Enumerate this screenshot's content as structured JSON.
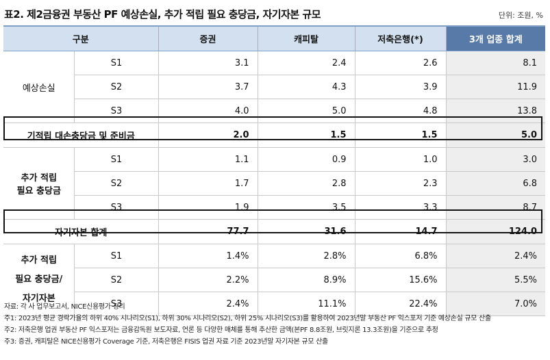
{
  "title": "표2. 제2금융권 부동산 PF 예상손실, 추가 적립 필요 충당금, 자기자본 규모",
  "unit": "단위: 조원, %",
  "headers": [
    "구분",
    "",
    "증권",
    "캐피탈",
    "저축은행(*)",
    "3개 업종 합계"
  ],
  "groups": {
    "expected_loss": "예상손실",
    "additional_1": "추가 적립",
    "additional_2": "필요 충당금",
    "ratio_1": "추가 적립",
    "ratio_2": "필요 충당금/",
    "ratio_3": "자기자본"
  },
  "rows": {
    "el": [
      {
        "s": "S1",
        "v": [
          "3.1",
          "2.4",
          "2.6",
          "8.1"
        ]
      },
      {
        "s": "S2",
        "v": [
          "3.7",
          "4.3",
          "3.9",
          "11.9"
        ]
      },
      {
        "s": "S3",
        "v": [
          "4.0",
          "5.0",
          "4.8",
          "13.8"
        ]
      }
    ],
    "reserve": {
      "label": "기적립 대손충당금 및 준비금",
      "v": [
        "2.0",
        "1.5",
        "1.5",
        "5.0"
      ]
    },
    "add": [
      {
        "s": "S1",
        "v": [
          "1.1",
          "0.9",
          "1.0",
          "3.0"
        ]
      },
      {
        "s": "S2",
        "v": [
          "1.7",
          "2.8",
          "2.3",
          "6.8"
        ]
      },
      {
        "s": "S3",
        "v": [
          "1.9",
          "3.5",
          "3.3",
          "8.7"
        ]
      }
    ],
    "equity": {
      "label": "자기자본 합계",
      "v": [
        "77.7",
        "31.6",
        "14.7",
        "124.0"
      ]
    },
    "ratio": [
      {
        "s": "S1",
        "v": [
          "1.4%",
          "2.8%",
          "6.8%",
          "2.4%"
        ]
      },
      {
        "s": "S2",
        "v": [
          "2.2%",
          "8.9%",
          "15.6%",
          "5.5%"
        ]
      },
      {
        "s": "S3",
        "v": [
          "2.4%",
          "11.1%",
          "22.4%",
          "7.0%"
        ]
      }
    ]
  },
  "notes": [
    "자료: 각 사 업무보고서, NICE신용평가 정리",
    "주1: 2023년 평균 경락가율의 하위 40% 시나리오(S1), 하위 30% 시나리오(S2), 하위 25% 시나리오(S3)를 활용하여 2023년말 부동산 PF 익스포저 기준 예상손실 규모 산출",
    "주2: 저축은행 업권 부동산 PF 익스포저는 금융감독원 보도자료, 언론 등 다양한 매체를 통해 추산한 금액(본PF 8.8조원, 브릿지론 13.3조원)을 기준으로 추정",
    "주3: 증권, 캐피탈은 NICE신용평가 Coverage 기준, 저축은행은 FISIS 업권 자료 기준 2023년말 자기자본 규모 산출"
  ]
}
